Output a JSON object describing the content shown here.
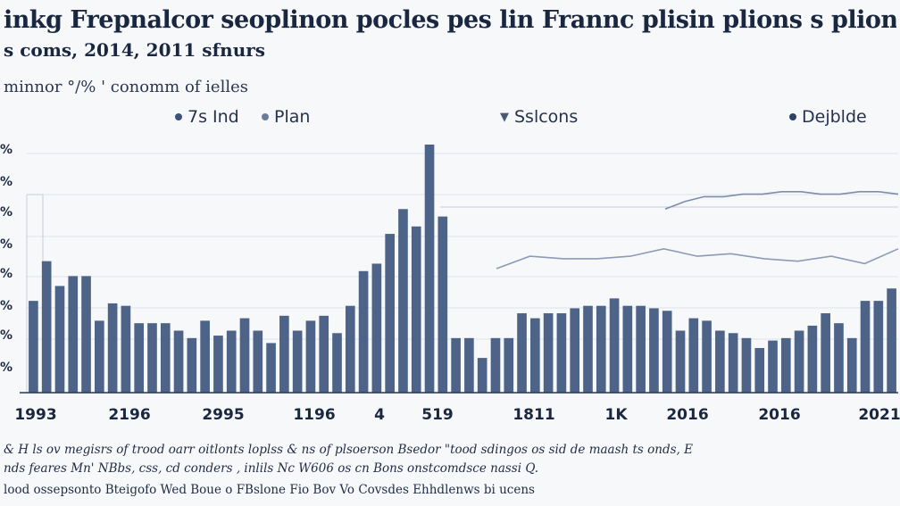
{
  "header": {
    "title": "inkg Frepnalcor seoplinon pocles pes lin Frannc plisin plions s plions sln pource uce sor",
    "subtitle": "s coms, 2014, 2011 sfnurs",
    "ylabel": "minnor °/% ' conomm of ielles"
  },
  "legend": [
    {
      "label": "7s Ind",
      "marker": "dot",
      "color": "#3d5278"
    },
    {
      "label": "Plan",
      "marker": "dot",
      "color": "#6b7c99"
    },
    {
      "label": "Sslcons",
      "marker": "triangle-down",
      "color": "#4a5875"
    },
    {
      "label": "Dejblde",
      "marker": "dot",
      "color": "#2f4166"
    }
  ],
  "footnotes": [
    "& H ls ov megisrs of trood oarr oitlonts loplss & ns of plsoerson Bsedor \"tood sdingos os sid de maash ts onds, E",
    "nds feares Mn' NBbs, css, cd conders , inlils Nc W606 os cn Bons onstcomdsce nassi Q.",
    "lood ossepsonto Bteigofo Wed Boue o FBslone Fio Bov Vo Covsdes Ehhdlenws bi ucens"
  ],
  "chart_data": {
    "type": "bar",
    "x_tick_labels": [
      "1993",
      "2196",
      "2995",
      "1196",
      "4",
      "519",
      "1811",
      "1K",
      "2016",
      "2016",
      "2021"
    ],
    "ylim": [
      0,
      100
    ],
    "grid": true,
    "bar_color": "#4d6488",
    "series": [
      {
        "values": [
          37,
          53,
          43,
          47,
          47,
          29,
          36,
          35,
          28,
          28,
          28,
          25,
          22,
          29,
          23,
          25,
          30,
          25,
          20,
          31,
          25,
          29,
          31,
          24,
          35,
          49,
          52,
          64,
          74,
          67,
          100,
          71,
          22,
          22,
          14,
          22,
          22,
          32,
          30,
          32,
          32,
          34,
          35,
          35,
          38,
          35,
          35,
          34,
          33,
          25,
          30,
          29,
          25,
          24,
          22,
          18,
          21,
          22,
          25,
          27,
          32,
          28,
          22,
          37,
          37,
          42
        ]
      }
    ],
    "lines": [
      {
        "values": [
          74,
          77,
          79,
          79,
          80,
          80,
          81,
          81,
          80,
          80,
          81,
          81,
          80
        ]
      },
      {
        "values": [
          50,
          55,
          54,
          54,
          55,
          58,
          55,
          56,
          54,
          53,
          55,
          52,
          58
        ]
      }
    ]
  }
}
